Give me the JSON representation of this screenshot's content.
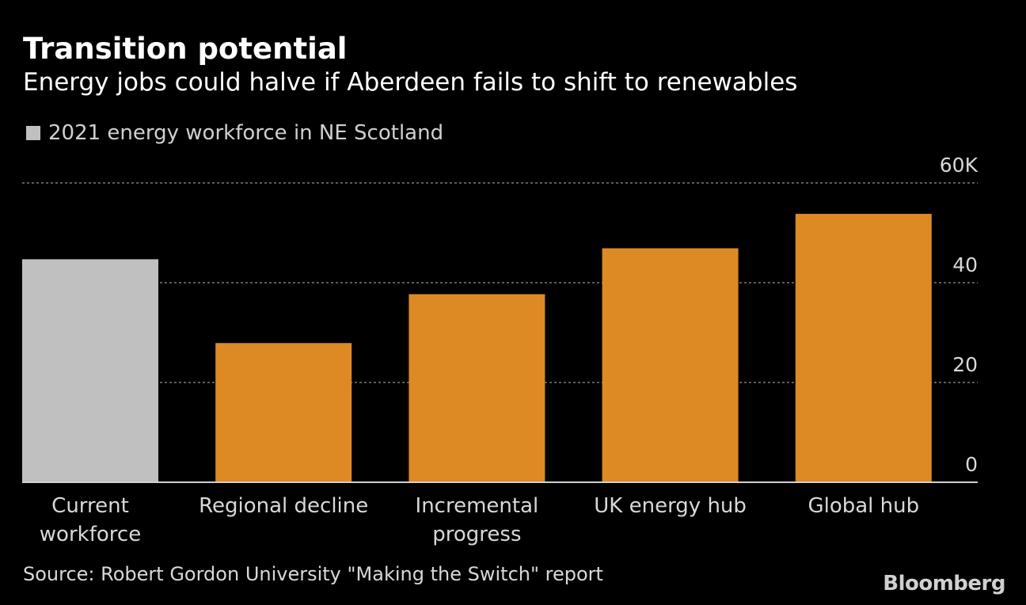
{
  "title": "Transition potential",
  "subtitle": "Energy jobs could halve if Aberdeen fails to shift to renewables",
  "legend": "2021 energy workforce in NE Scotland",
  "source": "Source: Robert Gordon University \"Making the Switch\" report",
  "logo": "Bloomberg",
  "colors": {
    "current": "#c0c0c0",
    "scenario": "#dd8a25",
    "grid": "#7a7a7a",
    "background": "#000000"
  },
  "chart_data": {
    "type": "bar",
    "categories": [
      [
        "Current",
        "workforce"
      ],
      [
        "Regional decline"
      ],
      [
        "Incremental",
        "progress"
      ],
      [
        "UK energy hub"
      ],
      [
        "Global hub"
      ]
    ],
    "values": [
      44.7,
      27.9,
      37.7,
      46.9,
      53.8
    ],
    "highlight": [
      true,
      false,
      false,
      false,
      false
    ],
    "ylim": [
      0,
      60
    ],
    "yticks": [
      0,
      20,
      40,
      60
    ],
    "ytick_labels": [
      "0",
      "20",
      "40",
      "60K"
    ],
    "yaxis_side": "right",
    "grid": true
  }
}
